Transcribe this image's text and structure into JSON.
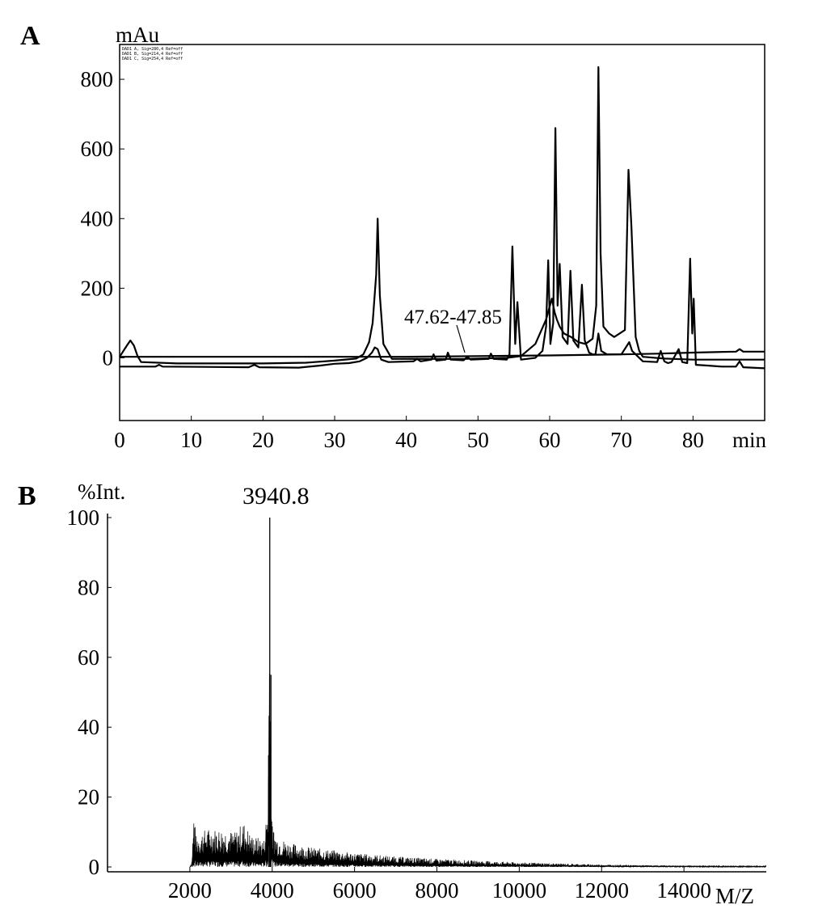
{
  "figure": {
    "panel_a_letter": "A",
    "panel_b_letter": "B"
  },
  "chart_data": [
    {
      "type": "line",
      "panel": "A",
      "ylabel": "mAu",
      "xunit": "min",
      "xlim": [
        0,
        90
      ],
      "ylim": [
        -180,
        900
      ],
      "xticks": [
        0,
        10,
        20,
        30,
        40,
        50,
        60,
        70,
        80
      ],
      "yticks": [
        0,
        200,
        400,
        600,
        800
      ],
      "grid": false,
      "legend_entries": [
        "DAD1 A, Sig=280,4 Ref=off",
        "DAD1 B, Sig=214,4 Ref=off",
        "DAD1 C, Sig=254,4 Ref=off"
      ],
      "annotation": {
        "text": "47.62-47.85",
        "x": 48.7,
        "y": 5
      },
      "series": [
        {
          "points": [
            [
              0,
              3
            ],
            [
              1,
              35
            ],
            [
              1.5,
              50
            ],
            [
              2,
              35
            ],
            [
              2.5,
              5
            ],
            [
              3,
              -12
            ],
            [
              8,
              -16
            ],
            [
              20,
              -16
            ],
            [
              26,
              -14
            ],
            [
              30,
              -8
            ],
            [
              33,
              -2
            ],
            [
              34,
              10
            ],
            [
              34.8,
              45
            ],
            [
              35.3,
              100
            ],
            [
              35.8,
              240
            ],
            [
              36,
              400
            ],
            [
              36.3,
              180
            ],
            [
              36.8,
              40
            ],
            [
              38,
              -3
            ],
            [
              48,
              -3
            ],
            [
              54,
              0
            ],
            [
              56,
              5
            ],
            [
              58,
              40
            ],
            [
              59.5,
              110
            ],
            [
              60.3,
              170
            ],
            [
              60.7,
              130
            ],
            [
              61,
              110
            ],
            [
              61.4,
              90
            ],
            [
              62,
              70
            ],
            [
              63,
              60
            ],
            [
              64,
              45
            ],
            [
              65,
              40
            ],
            [
              66,
              55
            ],
            [
              66.5,
              150
            ],
            [
              66.8,
              835
            ],
            [
              67.1,
              300
            ],
            [
              67.5,
              90
            ],
            [
              68.3,
              70
            ],
            [
              69,
              60
            ],
            [
              70.5,
              80
            ],
            [
              71,
              540
            ],
            [
              71.4,
              380
            ],
            [
              72,
              60
            ],
            [
              72.5,
              20
            ],
            [
              73,
              3
            ],
            [
              76,
              -2
            ],
            [
              80,
              -5
            ],
            [
              90,
              -5
            ]
          ]
        },
        {
          "points": [
            [
              0,
              -25
            ],
            [
              3,
              -25
            ],
            [
              5,
              -25
            ],
            [
              5.5,
              -20
            ],
            [
              6,
              -25
            ],
            [
              18,
              -27
            ],
            [
              18.8,
              -20
            ],
            [
              19.5,
              -27
            ],
            [
              25,
              -28
            ],
            [
              28,
              -22
            ],
            [
              30,
              -17
            ],
            [
              32,
              -15
            ],
            [
              33.5,
              -10
            ],
            [
              34.5,
              0
            ],
            [
              35.2,
              15
            ],
            [
              35.6,
              30
            ],
            [
              36,
              25
            ],
            [
              36.5,
              -5
            ],
            [
              37.5,
              -12
            ],
            [
              41,
              -10
            ],
            [
              41.5,
              -3
            ],
            [
              42,
              -10
            ],
            [
              43.5,
              -5
            ],
            [
              43.8,
              10
            ],
            [
              44.2,
              -8
            ],
            [
              45.5,
              -5
            ],
            [
              45.8,
              15
            ],
            [
              46.2,
              -5
            ],
            [
              48,
              -7
            ],
            [
              48.5,
              3
            ],
            [
              49,
              -5
            ],
            [
              51.5,
              -3
            ],
            [
              51.8,
              12
            ],
            [
              52.2,
              -3
            ],
            [
              54,
              -5
            ],
            [
              54.4,
              10
            ],
            [
              54.8,
              320
            ],
            [
              55.2,
              40
            ],
            [
              55.5,
              160
            ],
            [
              56,
              -5
            ],
            [
              58,
              0
            ],
            [
              59,
              20
            ],
            [
              59.5,
              90
            ],
            [
              59.8,
              280
            ],
            [
              60.1,
              40
            ],
            [
              60.5,
              100
            ],
            [
              60.8,
              660
            ],
            [
              61.1,
              150
            ],
            [
              61.4,
              270
            ],
            [
              61.8,
              60
            ],
            [
              62.5,
              40
            ],
            [
              62.9,
              250
            ],
            [
              63.3,
              50
            ],
            [
              64,
              30
            ],
            [
              64.5,
              210
            ],
            [
              64.9,
              50
            ],
            [
              65.5,
              15
            ],
            [
              66,
              10
            ],
            [
              66.4,
              10
            ],
            [
              66.8,
              70
            ],
            [
              67.2,
              20
            ],
            [
              68,
              10
            ],
            [
              70,
              10
            ],
            [
              71.1,
              45
            ],
            [
              71.5,
              20
            ],
            [
              73,
              -10
            ],
            [
              75,
              -12
            ],
            [
              75.5,
              20
            ],
            [
              76,
              -10
            ],
            [
              76.5,
              -15
            ],
            [
              77,
              -12
            ],
            [
              78,
              25
            ],
            [
              78.5,
              -12
            ],
            [
              79.2,
              -15
            ],
            [
              79.6,
              285
            ],
            [
              79.9,
              70
            ],
            [
              80.1,
              170
            ],
            [
              80.4,
              -20
            ],
            [
              82,
              -22
            ],
            [
              84,
              -25
            ],
            [
              86,
              -25
            ],
            [
              86.5,
              -10
            ],
            [
              87,
              -27
            ],
            [
              90,
              -30
            ]
          ]
        },
        {
          "points": [
            [
              0,
              3
            ],
            [
              35,
              3
            ],
            [
              40,
              3
            ],
            [
              50,
              5
            ],
            [
              60,
              7
            ],
            [
              70,
              10
            ],
            [
              75,
              12
            ],
            [
              80,
              15
            ],
            [
              86,
              18
            ],
            [
              86.5,
              25
            ],
            [
              87,
              18
            ],
            [
              90,
              18
            ]
          ]
        }
      ]
    },
    {
      "type": "line",
      "panel": "B",
      "peak_label": "3940.8",
      "ylabel": "%Int.",
      "xunit": "M/Z",
      "xlim": [
        0,
        16000
      ],
      "ylim": [
        -2,
        103
      ],
      "xticks": [
        2000,
        4000,
        6000,
        8000,
        10000,
        12000,
        14000
      ],
      "yticks": [
        0,
        20,
        40,
        60,
        80,
        100
      ],
      "grid": false,
      "series": [
        {
          "envelope": [
            [
              2000,
              0
            ],
            [
              2050,
              2
            ],
            [
              2100,
              17
            ],
            [
              2150,
              9
            ],
            [
              2400,
              11
            ],
            [
              2800,
              11
            ],
            [
              3100,
              10
            ],
            [
              3300,
              13
            ],
            [
              3500,
              9
            ],
            [
              3800,
              8
            ],
            [
              3900,
              20
            ],
            [
              3940.8,
              100
            ],
            [
              3960,
              55
            ],
            [
              4000,
              12
            ],
            [
              4100,
              9
            ],
            [
              4400,
              7
            ],
            [
              5000,
              5.5
            ],
            [
              6000,
              4
            ],
            [
              7000,
              3
            ],
            [
              8000,
              2.3
            ],
            [
              9000,
              1.8
            ],
            [
              10000,
              1.3
            ],
            [
              11000,
              1
            ],
            [
              12000,
              0.7
            ],
            [
              13000,
              0.5
            ],
            [
              14000,
              0.4
            ],
            [
              15000,
              0.3
            ],
            [
              16000,
              0.3
            ]
          ]
        }
      ]
    }
  ]
}
